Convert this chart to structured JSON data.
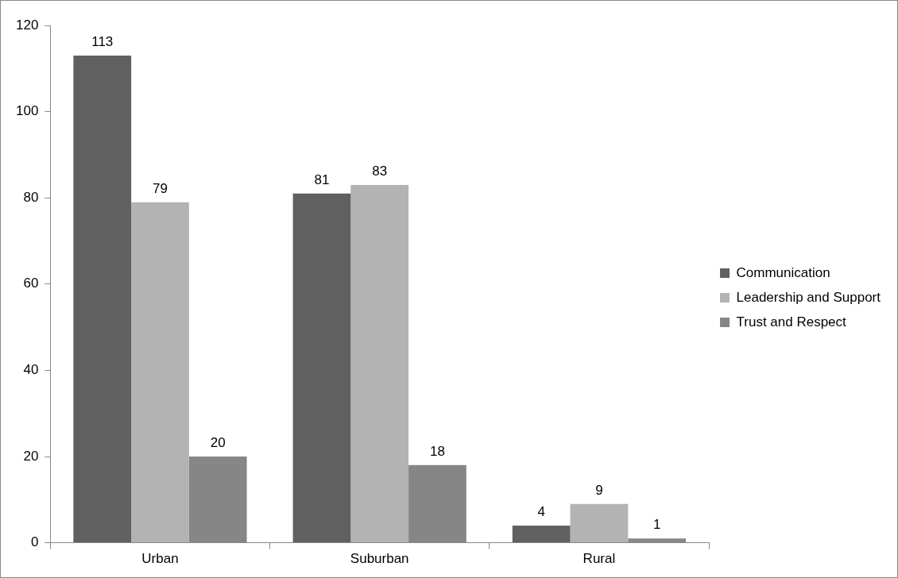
{
  "chart_data": {
    "type": "bar",
    "categories": [
      "Urban",
      "Suburban",
      "Rural"
    ],
    "series": [
      {
        "name": "Communication",
        "color": "#606060",
        "values": [
          113,
          81,
          4
        ]
      },
      {
        "name": "Leadership and Support",
        "color": "#b3b3b3",
        "values": [
          79,
          83,
          9
        ]
      },
      {
        "name": "Trust and Respect",
        "color": "#868686",
        "values": [
          20,
          18,
          1
        ]
      }
    ],
    "ylim": [
      0,
      120
    ],
    "yticks": [
      0,
      20,
      40,
      60,
      80,
      100,
      120
    ],
    "grid": false,
    "legend": "right",
    "data_labels": true
  }
}
